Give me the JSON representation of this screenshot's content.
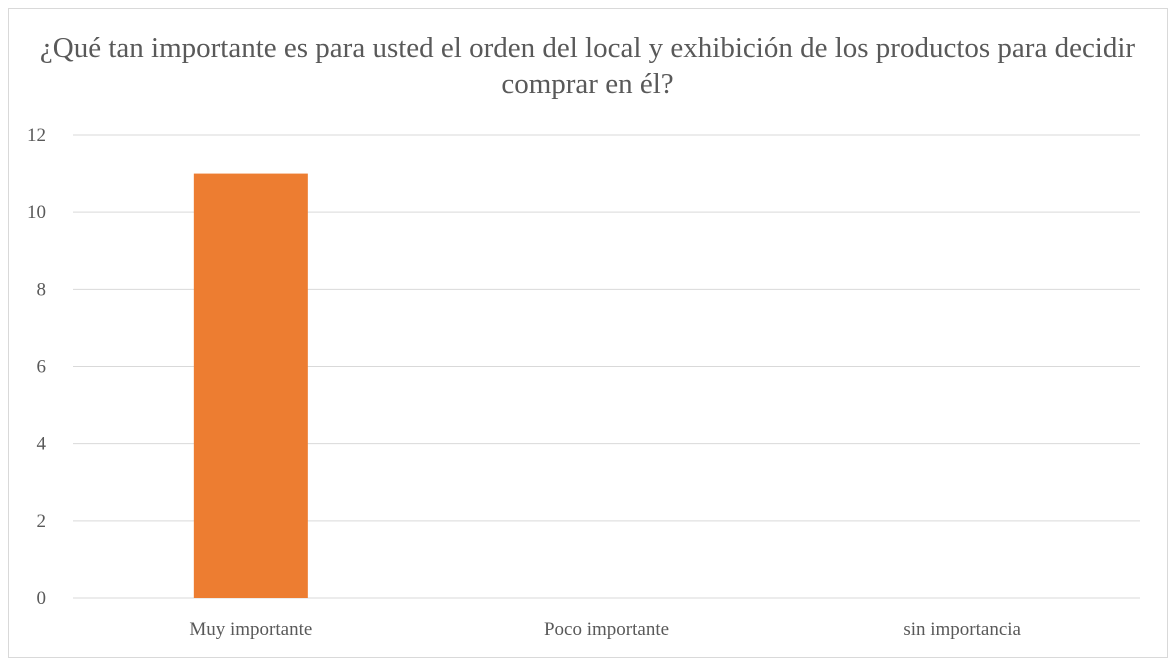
{
  "chart_data": {
    "type": "bar",
    "title": "¿Qué tan importante es para usted el orden del local y exhibición de los productos para decidir comprar en él?",
    "categories": [
      "Muy importante",
      "Poco importante",
      "sin importancia"
    ],
    "values": [
      11,
      0,
      0
    ],
    "ylim": [
      0,
      12
    ],
    "yticks": [
      0,
      2,
      4,
      6,
      8,
      10,
      12
    ],
    "xlabel": "",
    "ylabel": "",
    "grid": true,
    "legend": "none",
    "bar_color": "#ED7D31",
    "grid_color": "#D9D9D9",
    "text_color": "#595959"
  }
}
